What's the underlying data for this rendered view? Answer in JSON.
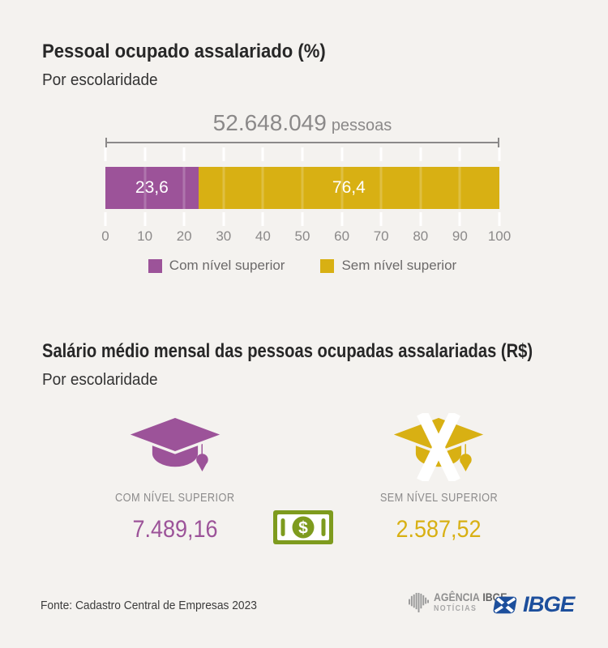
{
  "page": {
    "background": "#f4f2ef"
  },
  "section1": {
    "title": "Pessoal ocupado assalariado (%)",
    "subtitle": "Por escolaridade"
  },
  "chart_data": {
    "type": "bar",
    "orientation": "horizontal_stacked",
    "title": "Pessoal ocupado assalariado (%)",
    "subtitle": "Por escolaridade",
    "total_annotation": {
      "number": "52.648.049",
      "unit": "pessoas"
    },
    "categories": [
      "Com nível superior",
      "Sem nível superior"
    ],
    "values": [
      23.6,
      76.4
    ],
    "value_labels": [
      "23,6",
      "76,4"
    ],
    "colors": [
      "#9c5399",
      "#d8b013"
    ],
    "xlim": [
      0,
      100
    ],
    "x_ticks": [
      0,
      10,
      20,
      30,
      40,
      50,
      60,
      70,
      80,
      90,
      100
    ],
    "grid": true,
    "legend_position": "bottom"
  },
  "section2": {
    "title": "Salário médio mensal das pessoas ocupadas assalariadas (R$)",
    "subtitle": "Por escolaridade",
    "items": [
      {
        "icon": "graduation-cap-icon",
        "label": "COM NÍVEL SUPERIOR",
        "value": "7.489,16",
        "color": "#9c5399"
      },
      {
        "icon": "graduation-cap-crossed-icon",
        "label": "SEM NÍVEL SUPERIOR",
        "value": "2.587,52",
        "color": "#d8b013"
      }
    ],
    "money_icon": {
      "name": "money-banknote-icon",
      "color": "#7e9b1e",
      "symbol": "$"
    }
  },
  "footer": {
    "source": "Fonte: Cadastro Central de Empresas 2023",
    "agencia": {
      "name": "AGÊNCIA",
      "name_bold": "IBGE",
      "subtitle": "NOTÍCIAS"
    },
    "ibge": {
      "wordmark": "IBGE",
      "color": "#1d4f9c"
    }
  }
}
